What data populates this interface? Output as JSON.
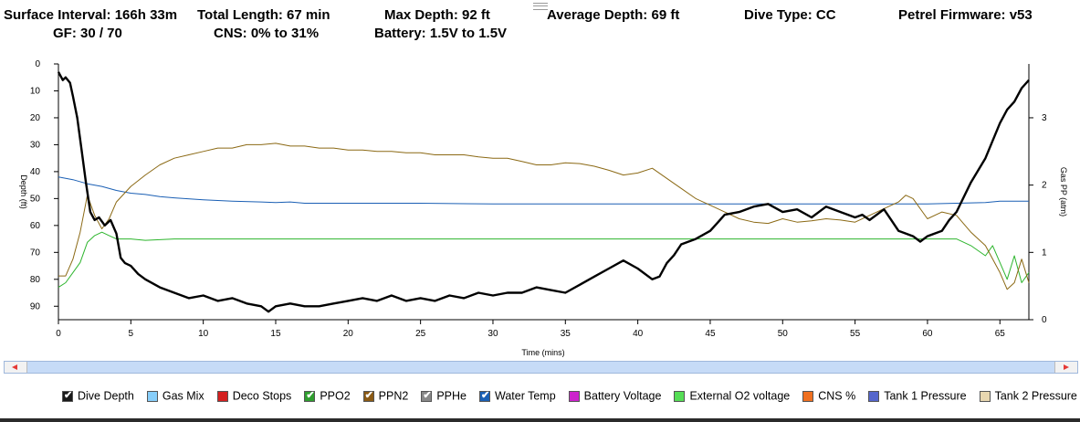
{
  "header": {
    "surface_interval": "Surface Interval: 166h 33m",
    "gf": "GF: 30 / 70",
    "total_length": "Total Length: 67 min",
    "cns": "CNS: 0% to 31%",
    "max_depth": "Max Depth: 92 ft",
    "battery": "Battery: 1.5V to 1.5V",
    "average_depth": "Average Depth: 69 ft",
    "dive_type": "Dive Type: CC",
    "firmware": "Petrel Firmware: v53"
  },
  "chart_data": {
    "type": "line",
    "xlabel": "Time (mins)",
    "ylabel": "Depth (ft)",
    "y2label": "Gas PP (atm)",
    "xlim": [
      0,
      67
    ],
    "ylim": [
      0,
      95
    ],
    "y2lim": [
      0,
      3.8
    ],
    "x_ticks": [
      0,
      5,
      10,
      15,
      20,
      25,
      30,
      35,
      40,
      45,
      50,
      55,
      60,
      65
    ],
    "y_ticks": [
      0,
      10,
      20,
      30,
      40,
      50,
      60,
      70,
      80,
      90
    ],
    "y2_ticks": [
      0,
      1,
      2,
      3
    ],
    "grid": false,
    "series": [
      {
        "name": "Dive Depth",
        "axis": "left",
        "color": "#000000",
        "points": [
          [
            0,
            3
          ],
          [
            0.3,
            6
          ],
          [
            0.5,
            5
          ],
          [
            0.8,
            7
          ],
          [
            1,
            12
          ],
          [
            1.3,
            20
          ],
          [
            1.6,
            32
          ],
          [
            1.9,
            44
          ],
          [
            2.2,
            55
          ],
          [
            2.5,
            58
          ],
          [
            2.8,
            57
          ],
          [
            3.2,
            60
          ],
          [
            3.6,
            58
          ],
          [
            4,
            63
          ],
          [
            4.3,
            72
          ],
          [
            4.6,
            74
          ],
          [
            5,
            75
          ],
          [
            5.5,
            78
          ],
          [
            6,
            80
          ],
          [
            7,
            83
          ],
          [
            8,
            85
          ],
          [
            9,
            87
          ],
          [
            10,
            86
          ],
          [
            11,
            88
          ],
          [
            12,
            87
          ],
          [
            13,
            89
          ],
          [
            14,
            90
          ],
          [
            14.5,
            92
          ],
          [
            15,
            90
          ],
          [
            16,
            89
          ],
          [
            17,
            90
          ],
          [
            18,
            90
          ],
          [
            19,
            89
          ],
          [
            20,
            88
          ],
          [
            21,
            87
          ],
          [
            22,
            88
          ],
          [
            23,
            86
          ],
          [
            24,
            88
          ],
          [
            25,
            87
          ],
          [
            26,
            88
          ],
          [
            27,
            86
          ],
          [
            28,
            87
          ],
          [
            29,
            85
          ],
          [
            30,
            86
          ],
          [
            31,
            85
          ],
          [
            32,
            85
          ],
          [
            33,
            83
          ],
          [
            34,
            84
          ],
          [
            35,
            85
          ],
          [
            36,
            82
          ],
          [
            37,
            79
          ],
          [
            38,
            76
          ],
          [
            39,
            73
          ],
          [
            40,
            76
          ],
          [
            41,
            80
          ],
          [
            41.5,
            79
          ],
          [
            42,
            74
          ],
          [
            42.5,
            71
          ],
          [
            43,
            67
          ],
          [
            44,
            65
          ],
          [
            45,
            62
          ],
          [
            45.5,
            59
          ],
          [
            46,
            56
          ],
          [
            47,
            55
          ],
          [
            48,
            53
          ],
          [
            49,
            52
          ],
          [
            50,
            55
          ],
          [
            51,
            54
          ],
          [
            52,
            57
          ],
          [
            53,
            53
          ],
          [
            54,
            55
          ],
          [
            55,
            57
          ],
          [
            55.5,
            56
          ],
          [
            56,
            58
          ],
          [
            57,
            54
          ],
          [
            57.5,
            58
          ],
          [
            58,
            62
          ],
          [
            59,
            64
          ],
          [
            59.5,
            66
          ],
          [
            60,
            64
          ],
          [
            61,
            62
          ],
          [
            61.5,
            58
          ],
          [
            62,
            55
          ],
          [
            63,
            44
          ],
          [
            64,
            35
          ],
          [
            65,
            22
          ],
          [
            65.5,
            17
          ],
          [
            66,
            14
          ],
          [
            66.5,
            9
          ],
          [
            67,
            6
          ]
        ]
      },
      {
        "name": "PPN2",
        "axis": "right",
        "color": "#8b6914",
        "points": [
          [
            0,
            0.65
          ],
          [
            0.5,
            0.65
          ],
          [
            1,
            0.9
          ],
          [
            1.5,
            1.3
          ],
          [
            2,
            1.85
          ],
          [
            2.5,
            1.55
          ],
          [
            3,
            1.35
          ],
          [
            3.5,
            1.5
          ],
          [
            4,
            1.75
          ],
          [
            5,
            1.98
          ],
          [
            6,
            2.15
          ],
          [
            7,
            2.3
          ],
          [
            8,
            2.4
          ],
          [
            9,
            2.45
          ],
          [
            10,
            2.5
          ],
          [
            11,
            2.55
          ],
          [
            12,
            2.55
          ],
          [
            13,
            2.6
          ],
          [
            14,
            2.6
          ],
          [
            15,
            2.62
          ],
          [
            16,
            2.58
          ],
          [
            17,
            2.58
          ],
          [
            18,
            2.55
          ],
          [
            19,
            2.55
          ],
          [
            20,
            2.52
          ],
          [
            21,
            2.52
          ],
          [
            22,
            2.5
          ],
          [
            23,
            2.5
          ],
          [
            24,
            2.48
          ],
          [
            25,
            2.48
          ],
          [
            26,
            2.45
          ],
          [
            27,
            2.45
          ],
          [
            28,
            2.45
          ],
          [
            29,
            2.42
          ],
          [
            30,
            2.4
          ],
          [
            31,
            2.4
          ],
          [
            32,
            2.35
          ],
          [
            33,
            2.3
          ],
          [
            34,
            2.3
          ],
          [
            35,
            2.33
          ],
          [
            36,
            2.32
          ],
          [
            37,
            2.28
          ],
          [
            38,
            2.22
          ],
          [
            39,
            2.15
          ],
          [
            40,
            2.18
          ],
          [
            41,
            2.25
          ],
          [
            42,
            2.1
          ],
          [
            43,
            1.95
          ],
          [
            44,
            1.8
          ],
          [
            45,
            1.7
          ],
          [
            46,
            1.6
          ],
          [
            47,
            1.5
          ],
          [
            48,
            1.45
          ],
          [
            49,
            1.43
          ],
          [
            50,
            1.5
          ],
          [
            51,
            1.45
          ],
          [
            52,
            1.47
          ],
          [
            53,
            1.5
          ],
          [
            54,
            1.48
          ],
          [
            55,
            1.45
          ],
          [
            56,
            1.55
          ],
          [
            57,
            1.65
          ],
          [
            58,
            1.75
          ],
          [
            58.5,
            1.85
          ],
          [
            59,
            1.8
          ],
          [
            60,
            1.5
          ],
          [
            61,
            1.6
          ],
          [
            62,
            1.55
          ],
          [
            63,
            1.3
          ],
          [
            64,
            1.1
          ],
          [
            65,
            0.7
          ],
          [
            65.5,
            0.45
          ],
          [
            66,
            0.55
          ],
          [
            66.5,
            0.9
          ],
          [
            67,
            0.55
          ]
        ]
      },
      {
        "name": "PPO2",
        "axis": "right",
        "color": "#2db52d",
        "points": [
          [
            0,
            0.48
          ],
          [
            0.5,
            0.55
          ],
          [
            1,
            0.7
          ],
          [
            1.5,
            0.85
          ],
          [
            2,
            1.15
          ],
          [
            2.5,
            1.25
          ],
          [
            3,
            1.3
          ],
          [
            3.5,
            1.25
          ],
          [
            4,
            1.2
          ],
          [
            5,
            1.2
          ],
          [
            6,
            1.18
          ],
          [
            8,
            1.2
          ],
          [
            10,
            1.2
          ],
          [
            12,
            1.2
          ],
          [
            14,
            1.2
          ],
          [
            16,
            1.2
          ],
          [
            18,
            1.2
          ],
          [
            20,
            1.2
          ],
          [
            22,
            1.2
          ],
          [
            24,
            1.2
          ],
          [
            26,
            1.2
          ],
          [
            28,
            1.2
          ],
          [
            30,
            1.2
          ],
          [
            32,
            1.2
          ],
          [
            34,
            1.2
          ],
          [
            36,
            1.2
          ],
          [
            38,
            1.2
          ],
          [
            40,
            1.2
          ],
          [
            42,
            1.2
          ],
          [
            44,
            1.2
          ],
          [
            46,
            1.2
          ],
          [
            48,
            1.2
          ],
          [
            50,
            1.2
          ],
          [
            52,
            1.2
          ],
          [
            54,
            1.2
          ],
          [
            56,
            1.2
          ],
          [
            58,
            1.2
          ],
          [
            60,
            1.2
          ],
          [
            62,
            1.2
          ],
          [
            63,
            1.1
          ],
          [
            64,
            0.95
          ],
          [
            64.5,
            1.1
          ],
          [
            65,
            0.85
          ],
          [
            65.5,
            0.6
          ],
          [
            66,
            0.95
          ],
          [
            66.5,
            0.55
          ],
          [
            67,
            0.7
          ]
        ]
      },
      {
        "name": "Water Temp",
        "axis": "right",
        "color": "#1a5fb4",
        "points": [
          [
            0,
            2.12
          ],
          [
            1,
            2.08
          ],
          [
            2,
            2.02
          ],
          [
            3,
            1.98
          ],
          [
            4,
            1.92
          ],
          [
            5,
            1.88
          ],
          [
            6,
            1.86
          ],
          [
            7,
            1.83
          ],
          [
            8,
            1.81
          ],
          [
            10,
            1.78
          ],
          [
            12,
            1.76
          ],
          [
            14,
            1.75
          ],
          [
            15,
            1.74
          ],
          [
            16,
            1.75
          ],
          [
            17,
            1.73
          ],
          [
            20,
            1.73
          ],
          [
            25,
            1.73
          ],
          [
            30,
            1.72
          ],
          [
            35,
            1.72
          ],
          [
            40,
            1.72
          ],
          [
            45,
            1.72
          ],
          [
            50,
            1.72
          ],
          [
            55,
            1.72
          ],
          [
            60,
            1.72
          ],
          [
            62,
            1.73
          ],
          [
            64,
            1.74
          ],
          [
            65,
            1.76
          ],
          [
            67,
            1.76
          ]
        ]
      }
    ],
    "legend": [
      {
        "label": "Dive Depth",
        "color": "#1a1a1a",
        "checked": true
      },
      {
        "label": "Gas Mix",
        "color": "#87cefa",
        "checked": false
      },
      {
        "label": "Deco Stops",
        "color": "#d42020",
        "checked": false
      },
      {
        "label": "PPO2",
        "color": "#2e9e2e",
        "checked": true
      },
      {
        "label": "PPN2",
        "color": "#8b5a14",
        "checked": true
      },
      {
        "label": "PPHe",
        "color": "#888888",
        "checked": true
      },
      {
        "label": "Water Temp",
        "color": "#1a5fb4",
        "checked": true
      },
      {
        "label": "Battery Voltage",
        "color": "#cc22cc",
        "checked": false
      },
      {
        "label": "External O2 voltage",
        "color": "#55dd55",
        "checked": false
      },
      {
        "label": "CNS %",
        "color": "#f07020",
        "checked": false
      },
      {
        "label": "Tank 1 Pressure",
        "color": "#5566cc",
        "checked": false
      },
      {
        "label": "Tank 2 Pressure",
        "color": "#e8d7b0",
        "checked": false
      }
    ]
  }
}
